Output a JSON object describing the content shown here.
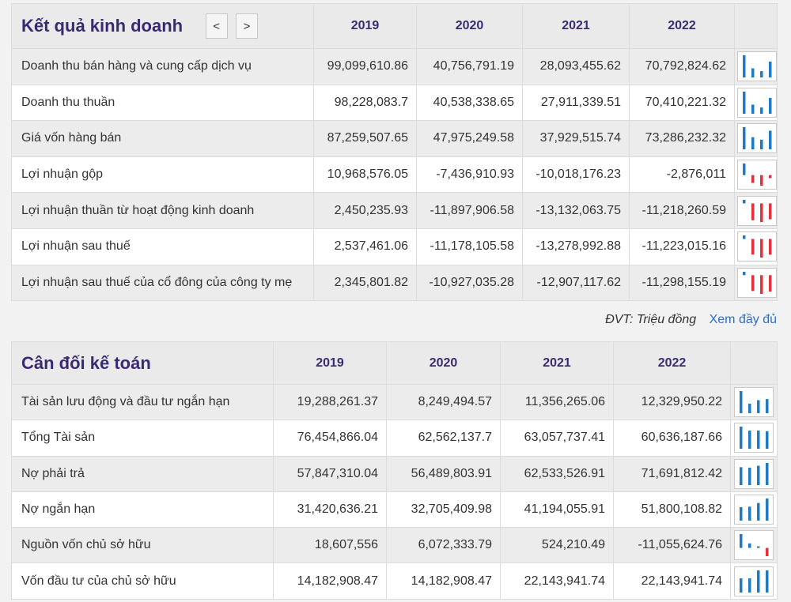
{
  "income": {
    "title": "Kết quả kinh doanh",
    "prev_label": "<",
    "next_label": ">",
    "years": [
      "2019",
      "2020",
      "2021",
      "2022"
    ],
    "rows": [
      {
        "label": "Doanh thu bán hàng và cung cấp dịch vụ",
        "values": [
          "99,099,610.86",
          "40,756,791.19",
          "28,093,455.62",
          "70,792,824.62"
        ],
        "series": [
          99099610.86,
          40756791.19,
          28093455.62,
          70792824.62
        ]
      },
      {
        "label": "Doanh thu thuần",
        "values": [
          "98,228,083.7",
          "40,538,338.65",
          "27,911,339.51",
          "70,410,221.32"
        ],
        "series": [
          98228083.7,
          40538338.65,
          27911339.51,
          70410221.32
        ]
      },
      {
        "label": "Giá vốn hàng bán",
        "values": [
          "87,259,507.65",
          "47,975,249.58",
          "37,929,515.74",
          "73,286,232.32"
        ],
        "series": [
          87259507.65,
          47975249.58,
          37929515.74,
          73286232.32
        ]
      },
      {
        "label": "Lợi nhuận gộp",
        "values": [
          "10,968,576.05",
          "-7,436,910.93",
          "-10,018,176.23",
          "-2,876,011"
        ],
        "series": [
          10968576.05,
          -7436910.93,
          -10018176.23,
          -2876011
        ]
      },
      {
        "label": "Lợi nhuận thuần từ hoạt động kinh doanh",
        "values": [
          "2,450,235.93",
          "-11,897,906.58",
          "-13,132,063.75",
          "-11,218,260.59"
        ],
        "series": [
          2450235.93,
          -11897906.58,
          -13132063.75,
          -11218260.59
        ]
      },
      {
        "label": "Lợi nhuận sau thuế",
        "values": [
          "2,537,461.06",
          "-11,178,105.58",
          "-13,278,992.88",
          "-11,223,015.16"
        ],
        "series": [
          2537461.06,
          -11178105.58,
          -13278992.88,
          -11223015.16
        ]
      },
      {
        "label": "Lợi nhuận sau thuế của cổ đông của công ty mẹ",
        "values": [
          "2,345,801.82",
          "-10,927,035.28",
          "-12,907,117.62",
          "-11,298,155.19"
        ],
        "series": [
          2345801.82,
          -10927035.28,
          -12907117.62,
          -11298155.19
        ]
      }
    ]
  },
  "unit_text": "ĐVT: Triệu đồng",
  "more_link": "Xem đầy đủ",
  "balance": {
    "title": "Cân đối kế toán",
    "years": [
      "2019",
      "2020",
      "2021",
      "2022"
    ],
    "rows": [
      {
        "label": "Tài sản lưu động và đầu tư ngắn hạn",
        "values": [
          "19,288,261.37",
          "8,249,494.57",
          "11,356,265.06",
          "12,329,950.22"
        ],
        "series": [
          19288261.37,
          8249494.57,
          11356265.06,
          12329950.22
        ]
      },
      {
        "label": "Tổng Tài sản",
        "values": [
          "76,454,866.04",
          "62,562,137.7",
          "63,057,737.41",
          "60,636,187.66"
        ],
        "series": [
          76454866.04,
          62562137.7,
          63057737.41,
          60636187.66
        ]
      },
      {
        "label": "Nợ phải trả",
        "values": [
          "57,847,310.04",
          "56,489,803.91",
          "62,533,526.91",
          "71,691,812.42"
        ],
        "series": [
          57847310.04,
          56489803.91,
          62533526.91,
          71691812.42
        ]
      },
      {
        "label": "Nợ ngắn hạn",
        "values": [
          "31,420,636.21",
          "32,705,409.98",
          "41,194,055.91",
          "51,800,108.82"
        ],
        "series": [
          31420636.21,
          32705409.98,
          41194055.91,
          51800108.82
        ]
      },
      {
        "label": "Nguồn vốn chủ sở hữu",
        "values": [
          "18,607,556",
          "6,072,333.79",
          "524,210.49",
          "-11,055,624.76"
        ],
        "series": [
          18607556,
          6072333.79,
          524210.49,
          -11055624.76
        ]
      },
      {
        "label": "Vốn đầu tư của chủ sở hữu",
        "values": [
          "14,182,908.47",
          "14,182,908.47",
          "22,143,941.74",
          "22,143,941.74"
        ],
        "series": [
          14182908.47,
          14182908.47,
          22143941.74,
          22143941.74
        ]
      }
    ]
  },
  "colors": {
    "positive_bar": "#1f7ac4",
    "negative_bar": "#e0313f",
    "heading": "#3b2a72",
    "link": "#2a6fc9"
  }
}
